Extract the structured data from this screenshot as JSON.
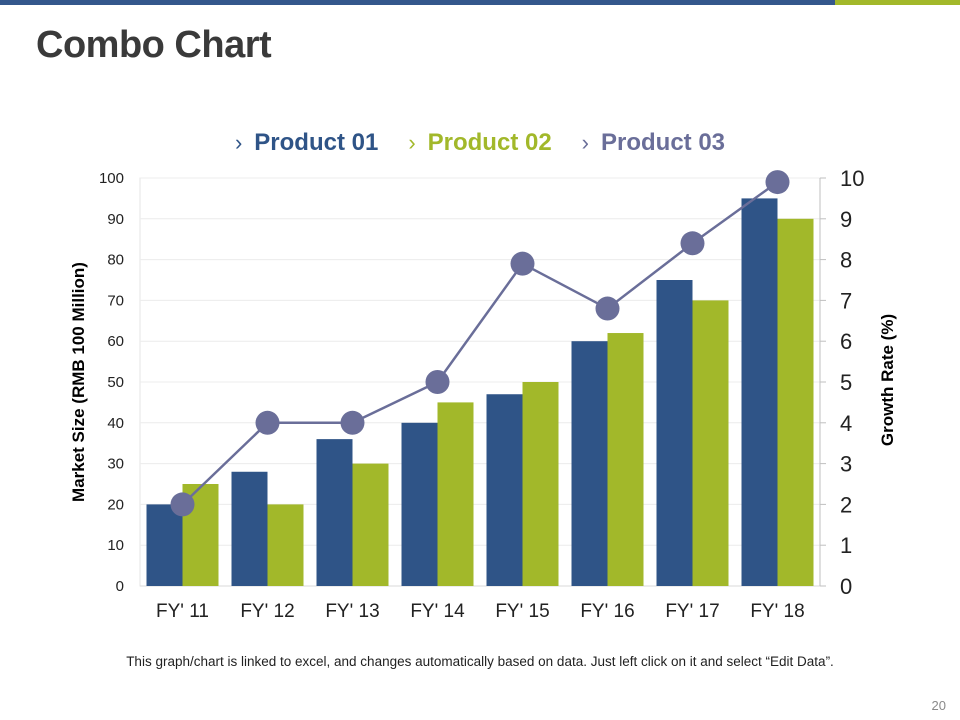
{
  "title": "Combo Chart",
  "colors": {
    "top_bar": "#34578c",
    "top_bar_accent": "#a2b82a",
    "product01": "#2f5487",
    "product02": "#a2b82a",
    "product03": "#6a6e99",
    "title_text": "#3a3a3a"
  },
  "legend": [
    {
      "label": "Product 01",
      "color": "#2f5487"
    },
    {
      "label": "Product 02",
      "color": "#a2b82a"
    },
    {
      "label": "Product 03",
      "color": "#6a6e99"
    }
  ],
  "chart_data": {
    "type": "bar",
    "categories": [
      "FY' 11",
      "FY' 12",
      "FY' 13",
      "FY' 14",
      "FY' 15",
      "FY' 16",
      "FY' 17",
      "FY' 18"
    ],
    "series": [
      {
        "name": "Product 01",
        "type": "bar",
        "axis": "left",
        "values": [
          20,
          28,
          36,
          40,
          47,
          60,
          75,
          95
        ]
      },
      {
        "name": "Product 02",
        "type": "bar",
        "axis": "left",
        "values": [
          25,
          20,
          30,
          45,
          50,
          62,
          70,
          90
        ]
      },
      {
        "name": "Product 03",
        "type": "line",
        "axis": "right",
        "values": [
          2,
          4,
          4,
          5,
          7.9,
          6.8,
          8.4,
          9.9
        ]
      }
    ],
    "ylabel": "Market Size (RMB 100 Million)",
    "y2label": "Growth Rate (%)",
    "ylim": [
      0,
      100
    ],
    "y2lim": [
      0,
      10
    ],
    "yticks": [
      0,
      10,
      20,
      30,
      40,
      50,
      60,
      70,
      80,
      90,
      100
    ],
    "y2ticks": [
      0,
      1,
      2,
      3,
      4,
      5,
      6,
      7,
      8,
      9,
      10
    ],
    "grid": true,
    "legend_position": "top"
  },
  "note": "This graph/chart is linked to excel, and changes automatically based on data. Just left click on it and select “Edit Data”.",
  "page_number": "20"
}
